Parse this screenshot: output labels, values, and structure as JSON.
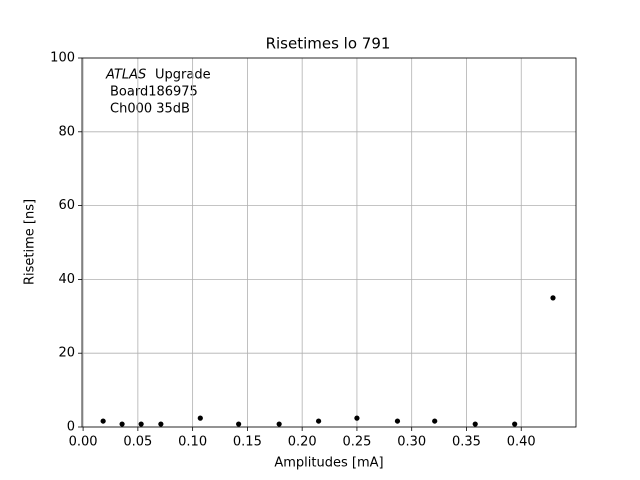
{
  "chart_data": {
    "type": "scatter",
    "title": "Risetimes lo 791",
    "xlabel": "Amplitudes [mA]",
    "ylabel": "Risetime [ns]",
    "annotation": {
      "italic": "ATLAS",
      "text": "Upgrade",
      "lines": [
        "Board186975",
        "Ch000 35dB"
      ]
    },
    "x": [
      0.0183,
      0.0356,
      0.053,
      0.071,
      0.107,
      0.142,
      0.179,
      0.215,
      0.25,
      0.287,
      0.321,
      0.358,
      0.394,
      0.429
    ],
    "values": [
      1.6,
      0.8,
      0.8,
      0.8,
      2.4,
      0.8,
      0.8,
      1.6,
      2.4,
      1.6,
      1.6,
      0.8,
      0.8,
      35.0
    ],
    "color": "#000000",
    "xlim": [
      -0.001,
      0.45
    ],
    "ylim": [
      0,
      100
    ],
    "xticks": [
      {
        "value": 0,
        "label": "0.00"
      },
      0.05,
      {
        "value": 0.1,
        "label": "0.10"
      },
      0.15,
      {
        "value": 0.2,
        "label": "0.20"
      },
      0.25,
      {
        "value": 0.3,
        "label": "0.30"
      },
      0.35,
      {
        "value": 0.4,
        "label": "0.40"
      }
    ],
    "yticks": [
      0,
      20,
      40,
      60,
      80,
      100
    ],
    "grid": true
  }
}
